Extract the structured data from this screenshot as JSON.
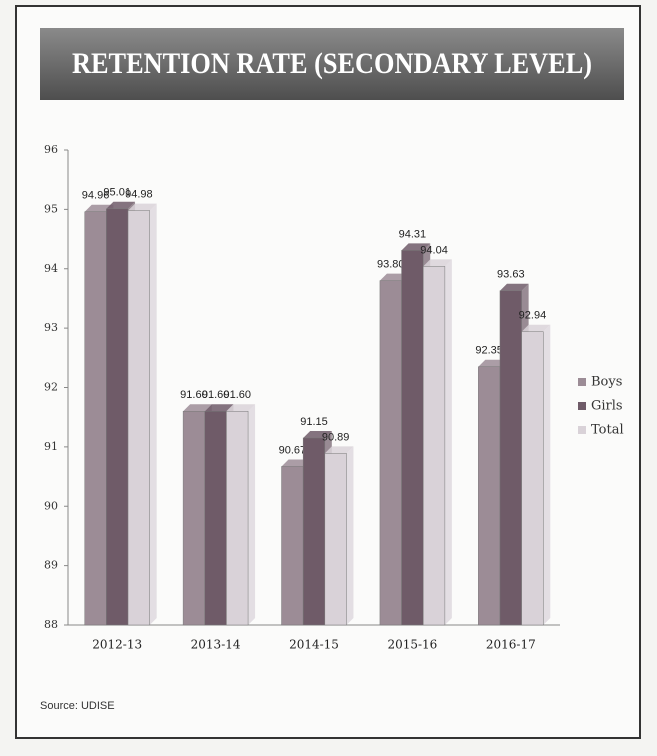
{
  "chart_data": {
    "type": "bar",
    "title": "RETENTION RATE (SECONDARY LEVEL)",
    "source": "Source: UDISE",
    "categories": [
      "2012-13",
      "2013-14",
      "2014-15",
      "2015-16",
      "2016-17"
    ],
    "series": [
      {
        "name": "Boys",
        "color": "#9c8c96",
        "values": [
          94.96,
          91.6,
          90.67,
          93.8,
          92.35
        ],
        "value_labels": [
          "94.96",
          "91.60",
          "90.67",
          "93.80",
          "92.35"
        ]
      },
      {
        "name": "Girls",
        "color": "#6f5b68",
        "values": [
          95.01,
          91.6,
          91.15,
          94.31,
          93.63
        ],
        "value_labels": [
          "95.01",
          "91.60",
          "91.15",
          "94.31",
          "93.63"
        ]
      },
      {
        "name": "Total",
        "color": "#d9d2d8",
        "values": [
          94.98,
          91.6,
          90.89,
          94.04,
          92.94
        ],
        "value_labels": [
          "94.98",
          "91.60",
          "90.89",
          "94.04",
          "92.94"
        ]
      }
    ],
    "ylim": [
      88,
      96
    ],
    "yticks": [
      88,
      89,
      90,
      91,
      92,
      93,
      94,
      95,
      96
    ],
    "legend": "right"
  }
}
